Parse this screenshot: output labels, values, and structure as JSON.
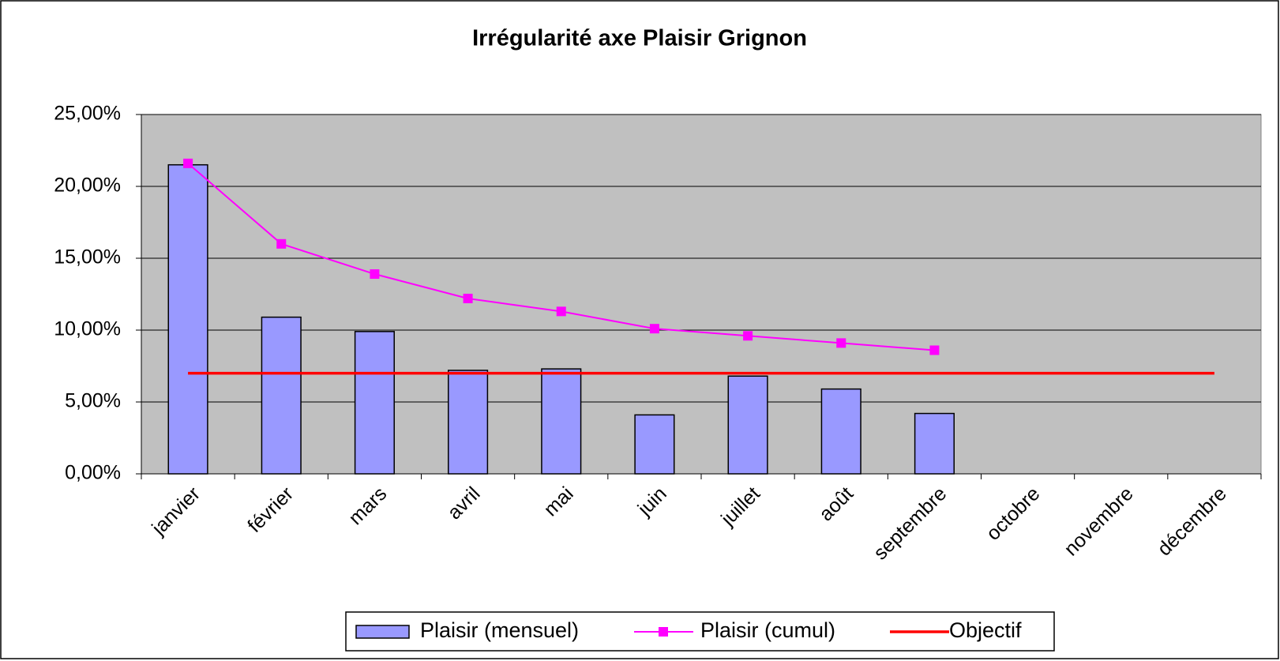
{
  "chart_data": {
    "type": "bar",
    "title": "Irrégularité axe Plaisir Grignon",
    "categories": [
      "janvier",
      "février",
      "mars",
      "avril",
      "mai",
      "juin",
      "juillet",
      "août",
      "septembre",
      "octobre",
      "novembre",
      "décembre"
    ],
    "series": [
      {
        "name": "Plaisir (mensuel)",
        "type": "bar",
        "color": "#9999ff",
        "values": [
          21.5,
          10.9,
          9.9,
          7.2,
          7.3,
          4.1,
          6.8,
          5.9,
          4.2,
          null,
          null,
          null
        ]
      },
      {
        "name": "Plaisir (cumul)",
        "type": "line",
        "marker": "square",
        "color": "#ff00ff",
        "values": [
          21.6,
          16.0,
          13.9,
          12.2,
          11.3,
          10.1,
          9.6,
          9.1,
          8.6,
          null,
          null,
          null
        ]
      },
      {
        "name": "Objectif",
        "type": "line",
        "color": "#ff0000",
        "values": [
          7,
          7,
          7,
          7,
          7,
          7,
          7,
          7,
          7,
          7,
          7,
          7
        ]
      }
    ],
    "ylim": [
      0,
      25
    ],
    "yticks": [
      {
        "value": 0,
        "label": "0,00%"
      },
      {
        "value": 5,
        "label": "5,00%"
      },
      {
        "value": 10,
        "label": "10,00%"
      },
      {
        "value": 15,
        "label": "15,00%"
      },
      {
        "value": 20,
        "label": "20,00%"
      },
      {
        "value": 25,
        "label": "25,00%"
      }
    ],
    "grid": true,
    "legend": "bottom"
  }
}
